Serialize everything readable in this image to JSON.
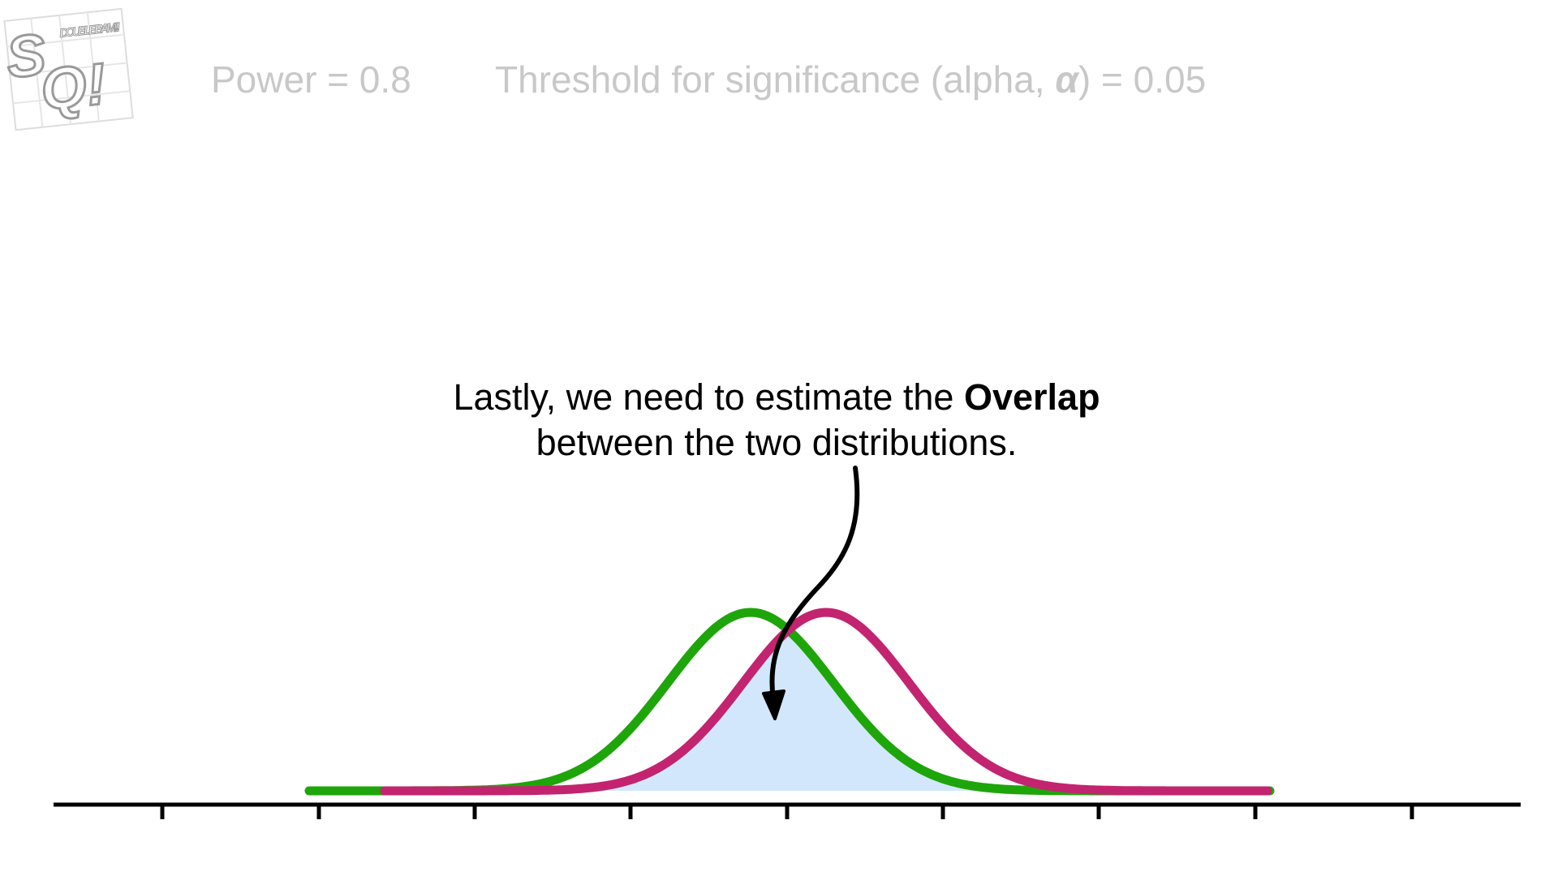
{
  "logo": {
    "s": "S",
    "q": "Q!",
    "tag": "DOUBLE BAM!!!"
  },
  "header": {
    "power": "Power = 0.8",
    "threshold_start": "Threshold for significance (alpha, ",
    "alpha_symbol": "α",
    "threshold_end": ") = 0.05"
  },
  "annotation": {
    "line1_start": "Lastly, we need to estimate the ",
    "line1_bold": "Overlap",
    "line2": "between the two distributions."
  }
}
